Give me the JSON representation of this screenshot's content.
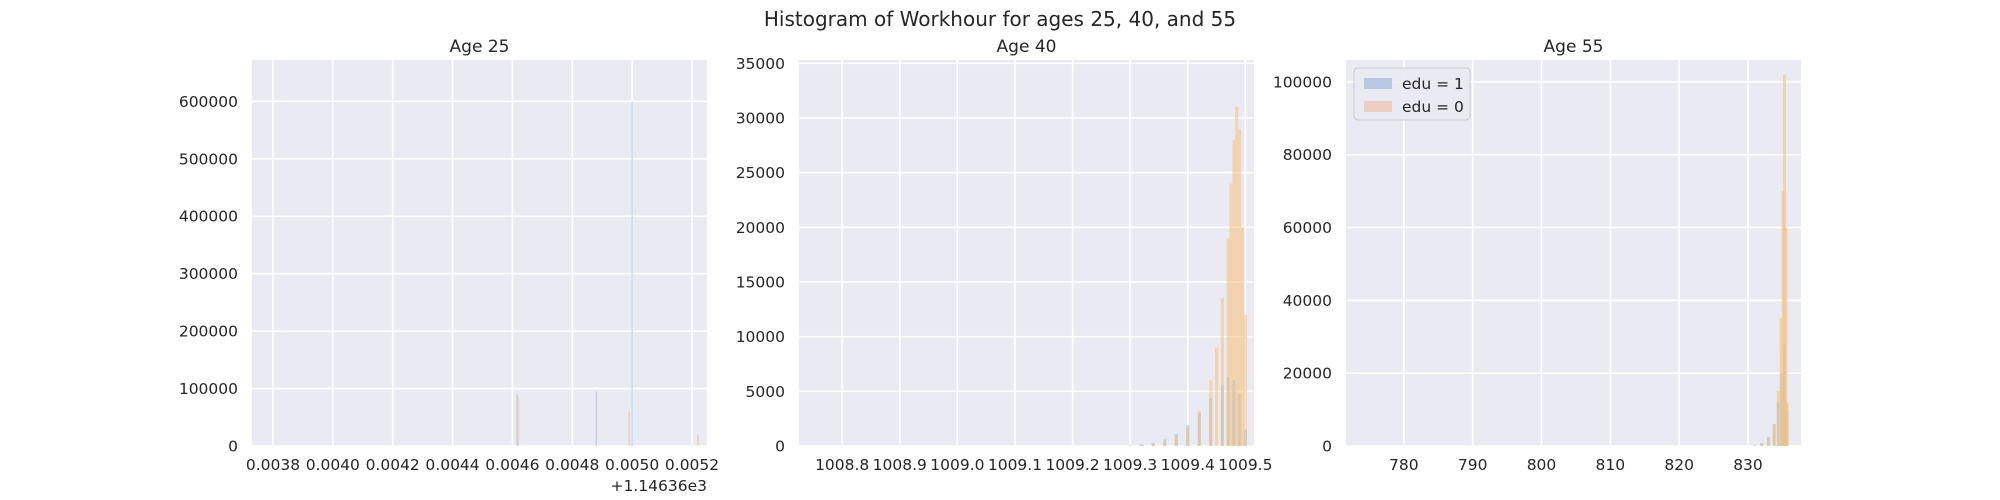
{
  "figure": {
    "title": "Histogram of Workhour for ages 25, 40, and 55"
  },
  "legend": {
    "placement": "upper-left of third panel",
    "entries": [
      {
        "label": "edu = 1",
        "color": "#a9bfe0"
      },
      {
        "label": "edu = 0",
        "color": "#ecc8b8"
      }
    ]
  },
  "colors": {
    "panel_background": "#eaeaf2",
    "grid": "#ffffff",
    "edu1_fill": "#8fbfe0",
    "edu0_fill": "#f5bf7d",
    "overlap_fill": "#c4b98a"
  },
  "chart_data": [
    {
      "type": "histogram",
      "title": "Age 25",
      "xlabel": "",
      "ylabel": "",
      "x_offset_label": "+1.14636e3",
      "x_offset": 1146.36,
      "xlim": [
        0.00373,
        0.00525
      ],
      "ylim": [
        0,
        672000
      ],
      "x_ticks": [
        0.0038,
        0.004,
        0.0042,
        0.0044,
        0.0046,
        0.0048,
        0.005,
        0.0052
      ],
      "x_tick_labels": [
        "0.0038",
        "0.0040",
        "0.0042",
        "0.0044",
        "0.0046",
        "0.0048",
        "0.0050",
        "0.0052"
      ],
      "y_ticks": [
        0,
        100000,
        200000,
        300000,
        400000,
        500000,
        600000
      ],
      "y_tick_labels": [
        "0",
        "100000",
        "200000",
        "300000",
        "400000",
        "500000",
        "600000"
      ],
      "grid": true,
      "series": [
        {
          "name": "edu = 1",
          "bins": [
            {
              "x": 0.004616,
              "w": 3.5e-06,
              "count": 90000
            },
            {
              "x": 0.00488,
              "w": 3.5e-06,
              "count": 95000
            },
            {
              "x": 0.005,
              "w": 3.5e-06,
              "count": 600000
            }
          ]
        },
        {
          "name": "edu = 0",
          "bins": [
            {
              "x": 0.00462,
              "w": 3.5e-06,
              "count": 85000
            },
            {
              "x": 0.00499,
              "w": 3.5e-06,
              "count": 60000
            },
            {
              "x": 0.00522,
              "w": 3.5e-06,
              "count": 20000
            }
          ]
        }
      ]
    },
    {
      "type": "histogram",
      "title": "Age 40",
      "xlabel": "",
      "ylabel": "",
      "xlim": [
        1008.725,
        1009.515
      ],
      "ylim": [
        0,
        35300
      ],
      "x_ticks": [
        1008.8,
        1008.9,
        1009.0,
        1009.1,
        1009.2,
        1009.3,
        1009.4,
        1009.5
      ],
      "x_tick_labels": [
        "1008.8",
        "1008.9",
        "1009.0",
        "1009.1",
        "1009.2",
        "1009.3",
        "1009.4",
        "1009.5"
      ],
      "y_ticks": [
        0,
        5000,
        10000,
        15000,
        20000,
        25000,
        30000,
        35000
      ],
      "y_tick_labels": [
        "0",
        "5000",
        "10000",
        "15000",
        "20000",
        "25000",
        "30000",
        "35000"
      ],
      "grid": true,
      "series": [
        {
          "name": "edu = 1",
          "bins": [
            {
              "x": 1009.3,
              "count": 50
            },
            {
              "x": 1009.32,
              "count": 150
            },
            {
              "x": 1009.34,
              "count": 300
            },
            {
              "x": 1009.36,
              "count": 600
            },
            {
              "x": 1009.38,
              "count": 1100
            },
            {
              "x": 1009.4,
              "count": 1900
            },
            {
              "x": 1009.42,
              "count": 3000
            },
            {
              "x": 1009.44,
              "count": 4300
            },
            {
              "x": 1009.46,
              "count": 5600
            },
            {
              "x": 1009.47,
              "count": 6300
            },
            {
              "x": 1009.48,
              "count": 6000
            },
            {
              "x": 1009.49,
              "count": 4800
            },
            {
              "x": 1009.5,
              "count": 1500
            }
          ]
        },
        {
          "name": "edu = 0",
          "bins": [
            {
              "x": 1009.3,
              "count": 30
            },
            {
              "x": 1009.32,
              "count": 100
            },
            {
              "x": 1009.34,
              "count": 200
            },
            {
              "x": 1009.36,
              "count": 450
            },
            {
              "x": 1009.38,
              "count": 900
            },
            {
              "x": 1009.4,
              "count": 1700
            },
            {
              "x": 1009.42,
              "count": 3200
            },
            {
              "x": 1009.44,
              "count": 6000
            },
            {
              "x": 1009.45,
              "count": 9000
            },
            {
              "x": 1009.46,
              "count": 13500
            },
            {
              "x": 1009.47,
              "count": 19000
            },
            {
              "x": 1009.475,
              "count": 24000
            },
            {
              "x": 1009.48,
              "count": 28000
            },
            {
              "x": 1009.485,
              "count": 31000
            },
            {
              "x": 1009.49,
              "count": 29000
            },
            {
              "x": 1009.495,
              "count": 20000
            },
            {
              "x": 1009.5,
              "count": 12000
            }
          ]
        }
      ]
    },
    {
      "type": "histogram",
      "title": "Age 55",
      "xlabel": "",
      "ylabel": "",
      "xlim": [
        771.6,
        837.7
      ],
      "ylim": [
        0,
        106000
      ],
      "x_ticks": [
        780,
        790,
        800,
        810,
        820,
        830
      ],
      "x_tick_labels": [
        "780",
        "790",
        "800",
        "810",
        "820",
        "830"
      ],
      "y_ticks": [
        0,
        20000,
        40000,
        60000,
        80000,
        100000
      ],
      "y_tick_labels": [
        "0",
        "20000",
        "40000",
        "60000",
        "80000",
        "100000"
      ],
      "grid": true,
      "series": [
        {
          "name": "edu = 1",
          "bins": [
            {
              "x": 831.0,
              "count": 200
            },
            {
              "x": 832.0,
              "count": 800
            },
            {
              "x": 833.0,
              "count": 2500
            },
            {
              "x": 833.8,
              "count": 6000
            },
            {
              "x": 834.4,
              "count": 12000
            },
            {
              "x": 834.9,
              "count": 20000
            },
            {
              "x": 835.3,
              "count": 28000
            },
            {
              "x": 835.6,
              "count": 10000
            }
          ]
        },
        {
          "name": "edu = 0",
          "bins": [
            {
              "x": 832.0,
              "count": 500
            },
            {
              "x": 833.0,
              "count": 2000
            },
            {
              "x": 833.8,
              "count": 6000
            },
            {
              "x": 834.4,
              "count": 15000
            },
            {
              "x": 834.8,
              "count": 35000
            },
            {
              "x": 835.1,
              "count": 70000
            },
            {
              "x": 835.3,
              "count": 102000
            },
            {
              "x": 835.5,
              "count": 60000
            },
            {
              "x": 835.7,
              "count": 12000
            }
          ]
        }
      ]
    }
  ]
}
